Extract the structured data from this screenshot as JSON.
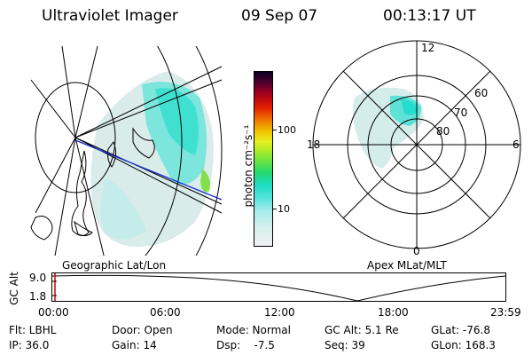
{
  "header": {
    "title": "Ultraviolet Imager",
    "date": "09 Sep 07",
    "time": "00:13:17 UT"
  },
  "colorbar": {
    "label": "photon cm⁻²s⁻¹",
    "ticks": [
      "100",
      "10"
    ],
    "scale": "log",
    "colors": [
      "#f0f0f0",
      "#d8f0ee",
      "#a6ecea",
      "#4fe3d9",
      "#1fdcc4",
      "#22d970",
      "#8ee830",
      "#e8f020",
      "#f0c000",
      "#f07a00",
      "#e01a00",
      "#a00020",
      "#4a0030",
      "#0a0020"
    ]
  },
  "left_map": {
    "label": "Geographic Lat/Lon"
  },
  "right_map": {
    "label": "Apex MLat/MLT",
    "mlt_labels": {
      "top": "12",
      "left": "18",
      "right": "6",
      "bottom": "0"
    },
    "lat_labels": [
      "60",
      "70",
      "80"
    ]
  },
  "altitude_plot": {
    "ylabel": "GC Alt",
    "yticks": [
      "9.0",
      "1.8"
    ],
    "xticks": [
      "00:00",
      "06:00",
      "12:00",
      "18:00",
      "23:59"
    ]
  },
  "footer": {
    "rows": [
      [
        "Flt: LBHL",
        "Door: Open",
        "Mode: Normal",
        "GC Alt: 5.1 Re",
        "GLat: -76.8"
      ],
      [
        "IP: 36.0",
        "Gain: 14",
        "Dsp:    -7.5",
        "Seq: 39",
        "GLon: 168.3"
      ]
    ]
  }
}
